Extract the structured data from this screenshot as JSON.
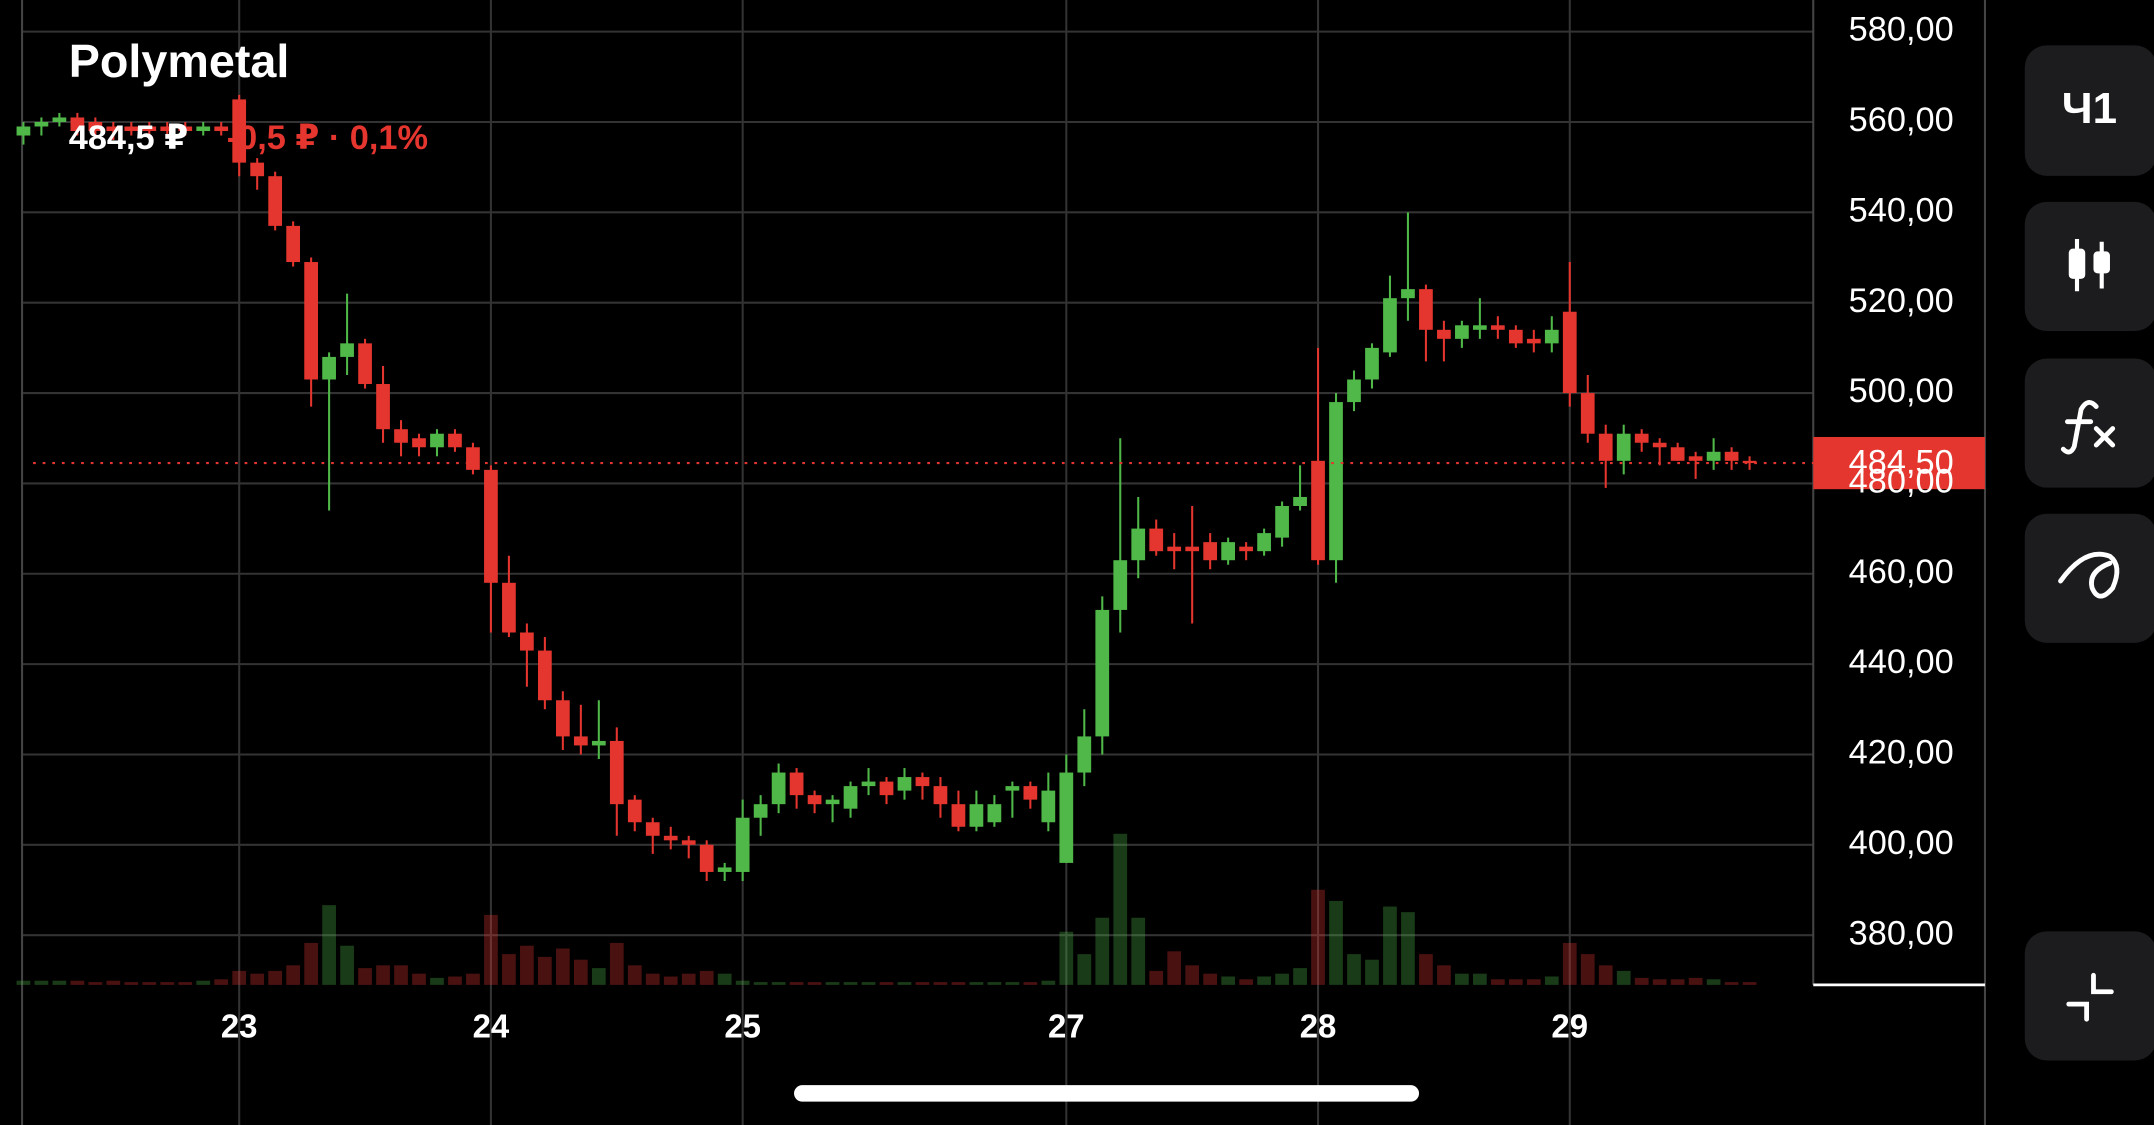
{
  "chart_data": {
    "type": "candlestick",
    "title": "Polymetal",
    "price_text": "484,5 ₽",
    "change_text": "-0,5 ₽ · 0,1%",
    "last_price": {
      "value": 484.5,
      "label": "484,50"
    },
    "interval_button": "Ч1",
    "up_color": "#4fb848",
    "down_color": "#e4352e",
    "grid": true,
    "ylim": [
      369,
      587
    ],
    "yticks": [
      {
        "value": 380,
        "label": "380,00"
      },
      {
        "value": 400,
        "label": "400,00"
      },
      {
        "value": 420,
        "label": "420,00"
      },
      {
        "value": 440,
        "label": "440,00"
      },
      {
        "value": 460,
        "label": "460,00"
      },
      {
        "value": 480,
        "label": "480,00"
      },
      {
        "value": 500,
        "label": "500,00"
      },
      {
        "value": 520,
        "label": "520,00"
      },
      {
        "value": 540,
        "label": "540,00"
      },
      {
        "value": 560,
        "label": "560,00"
      },
      {
        "value": 580,
        "label": "580,00"
      }
    ],
    "categories": [
      null,
      null,
      null,
      null,
      null,
      null,
      null,
      null,
      null,
      null,
      null,
      null,
      "23",
      null,
      null,
      null,
      null,
      null,
      null,
      null,
      null,
      null,
      null,
      null,
      null,
      null,
      "24",
      null,
      null,
      null,
      null,
      null,
      null,
      null,
      null,
      null,
      null,
      null,
      null,
      null,
      "25",
      null,
      null,
      null,
      null,
      null,
      null,
      null,
      null,
      null,
      null,
      null,
      null,
      null,
      null,
      null,
      null,
      null,
      "27",
      null,
      null,
      null,
      null,
      null,
      null,
      null,
      null,
      null,
      null,
      null,
      null,
      null,
      "28",
      null,
      null,
      null,
      null,
      null,
      null,
      null,
      null,
      null,
      null,
      null,
      null,
      null,
      "29",
      null,
      null,
      null,
      null,
      null,
      null,
      null,
      null,
      null,
      null
    ],
    "open": [
      557,
      559,
      560,
      561,
      560,
      559,
      559,
      559,
      559,
      559,
      558,
      559,
      565,
      551,
      548,
      537,
      529,
      503,
      508,
      511,
      502,
      492,
      490,
      488,
      491,
      488,
      483,
      458,
      447,
      443,
      432,
      424,
      422,
      423,
      410,
      405,
      402,
      401,
      400,
      394,
      394,
      406,
      409,
      416,
      411,
      409,
      408,
      413,
      414,
      412,
      415,
      413,
      409,
      404,
      405,
      412,
      413,
      405,
      396,
      416,
      424,
      452,
      463,
      470,
      466,
      466,
      467,
      463,
      466,
      465,
      468,
      475,
      485,
      463,
      498,
      503,
      509,
      521,
      523,
      514,
      512,
      514,
      515,
      514,
      512,
      511,
      518,
      500,
      491,
      485,
      491,
      489,
      488,
      486,
      485,
      487,
      485
    ],
    "high": [
      560,
      561,
      562,
      562,
      561,
      560,
      560,
      560,
      560,
      560,
      560,
      560,
      566,
      552,
      549,
      538,
      530,
      509,
      522,
      512,
      506,
      494,
      491,
      492,
      492,
      489,
      484,
      464,
      449,
      446,
      434,
      431,
      432,
      426,
      411,
      406,
      404,
      402,
      401,
      396,
      410,
      411,
      418,
      417,
      412,
      411,
      414,
      417,
      415,
      417,
      416,
      415,
      412,
      412,
      411,
      414,
      414,
      416,
      420,
      430,
      455,
      490,
      477,
      472,
      469,
      475,
      469,
      468,
      467,
      470,
      476,
      484,
      510,
      500,
      505,
      511,
      526,
      540,
      524,
      516,
      516,
      521,
      517,
      515,
      514,
      517,
      529,
      504,
      493,
      493,
      492,
      490,
      489,
      487,
      490,
      488,
      486
    ],
    "low": [
      555,
      557,
      559,
      557,
      557,
      556,
      557,
      557,
      557,
      557,
      557,
      557,
      548,
      545,
      536,
      528,
      497,
      474,
      504,
      501,
      489,
      486,
      486,
      486,
      487,
      482,
      447,
      446,
      435,
      430,
      421,
      420,
      419,
      402,
      403,
      398,
      399,
      397,
      392,
      392,
      392,
      402,
      407,
      408,
      407,
      405,
      406,
      411,
      409,
      410,
      410,
      406,
      403,
      403,
      404,
      406,
      408,
      403,
      396,
      413,
      420,
      447,
      459,
      464,
      461,
      449,
      461,
      462,
      463,
      464,
      466,
      474,
      462,
      458,
      496,
      501,
      508,
      516,
      507,
      507,
      510,
      512,
      512,
      510,
      509,
      509,
      497,
      489,
      479,
      482,
      487,
      484,
      485,
      481,
      483,
      483,
      483
    ],
    "close": [
      559,
      560,
      561,
      558,
      558,
      558,
      558,
      558,
      558,
      558,
      559,
      558,
      551,
      548,
      537,
      529,
      503,
      508,
      511,
      502,
      492,
      489,
      488,
      491,
      488,
      483,
      458,
      447,
      443,
      432,
      424,
      422,
      423,
      409,
      405,
      402,
      401,
      400,
      394,
      395,
      406,
      409,
      416,
      411,
      409,
      410,
      413,
      414,
      411,
      415,
      413,
      409,
      404,
      409,
      409,
      413,
      410,
      412,
      416,
      424,
      452,
      463,
      470,
      465,
      465,
      465,
      463,
      467,
      465,
      469,
      475,
      477,
      463,
      498,
      503,
      510,
      521,
      523,
      514,
      512,
      515,
      515,
      514,
      511,
      511,
      514,
      500,
      491,
      485,
      491,
      489,
      488,
      485,
      485,
      487,
      485,
      484.5
    ],
    "volume": [
      3,
      3,
      3,
      3,
      2,
      3,
      2,
      2,
      2,
      2,
      3,
      4,
      10,
      8,
      10,
      14,
      30,
      57,
      28,
      12,
      14,
      14,
      8,
      5,
      6,
      8,
      50,
      22,
      28,
      20,
      26,
      18,
      12,
      30,
      14,
      8,
      6,
      8,
      10,
      8,
      3,
      2,
      2,
      2,
      2,
      2,
      2,
      2,
      2,
      2,
      2,
      2,
      2,
      2,
      2,
      2,
      2,
      3,
      38,
      22,
      48,
      108,
      48,
      10,
      24,
      14,
      8,
      6,
      4,
      6,
      8,
      12,
      68,
      60,
      22,
      18,
      56,
      52,
      22,
      14,
      8,
      8,
      4,
      4,
      4,
      6,
      30,
      22,
      14,
      10,
      5,
      4,
      4,
      5,
      4,
      2,
      2
    ]
  }
}
